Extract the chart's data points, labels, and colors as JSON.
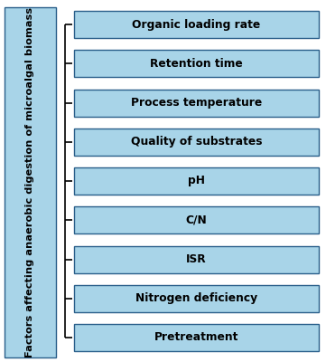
{
  "title_box_text": "Factors affecting anaerobic digestion of microalgal biomass",
  "items": [
    "Organic loading rate",
    "Retention time",
    "Process temperature",
    "Quality of substrates",
    "pH",
    "C/N",
    "ISR",
    "Nitrogen deficiency",
    "Pretreatment"
  ],
  "box_fill_color": "#A8D4E8",
  "box_edge_color": "#2a5f8a",
  "text_color": "#000000",
  "background_color": "#ffffff",
  "title_fontsize": 8.2,
  "item_fontsize": 8.8,
  "fig_width": 3.61,
  "fig_height": 4.0,
  "dpi": 100
}
